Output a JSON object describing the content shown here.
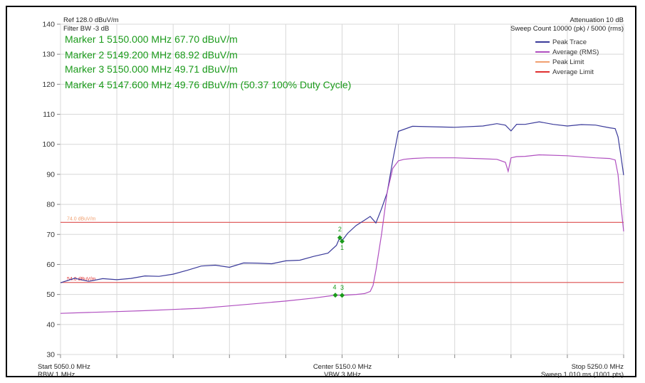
{
  "header": {
    "ref_level": "Ref 128.0 dBuV/m",
    "filter_bw": "Filter BW -3 dB",
    "attenuation": "Attenuation 10 dB",
    "sweep_count": "Sweep Count 10000 (pk) / 5000 (rms)"
  },
  "markers": [
    "Marker 1 5150.000 MHz 67.70 dBuV/m",
    "Marker 2 5149.200 MHz 68.92 dBuV/m",
    "Marker 3 5150.000 MHz 49.71 dBuV/m",
    "Marker 4 5147.600 MHz 49.76 dBuV/m (50.37 100% Duty Cycle)"
  ],
  "footer": {
    "start": "Start 5050.0 MHz",
    "rbw": "RBW 1 MHz",
    "center": "Center 5150.0 MHz",
    "vbw": "VBW 3 MHz",
    "stop": "Stop 5250.0 MHz",
    "sweep": "Sweep 1.010 ms (1001 pts)"
  },
  "colors": {
    "peak_trace": "#3a3a9a",
    "average_trace": "#b04fc0",
    "peak_limit": "#f0a070",
    "average_limit": "#e03030",
    "marker": "#1a9a1a",
    "grid": "#d8d8d8"
  },
  "chart_data": {
    "type": "line",
    "xlim": [
      5050.0,
      5250.0
    ],
    "ylim": [
      30,
      140
    ],
    "y_ticks": [
      30,
      40,
      50,
      60,
      70,
      80,
      90,
      100,
      110,
      120,
      130,
      140
    ],
    "grid": true,
    "legend_position": "top-right",
    "legend": [
      "Peak Trace",
      "Average (RMS)",
      "Peak Limit",
      "Average Limit"
    ],
    "limit_lines": [
      {
        "name": "Peak Limit",
        "value": 74.0,
        "label": "74.0 dBuV/m"
      },
      {
        "name": "Average Limit",
        "value": 54.0,
        "label": "54.0 dBuV/m"
      }
    ],
    "series": [
      {
        "name": "Peak Trace",
        "x": [
          5050,
          5055,
          5060,
          5065,
          5070,
          5075,
          5080,
          5085,
          5090,
          5095,
          5100,
          5105,
          5110,
          5115,
          5120,
          5125,
          5130,
          5135,
          5140,
          5145,
          5148,
          5149.2,
          5150,
          5152,
          5155,
          5158,
          5160,
          5162,
          5164,
          5166,
          5168,
          5170,
          5175,
          5180,
          5190,
          5200,
          5205,
          5208,
          5210,
          5212,
          5215,
          5220,
          5225,
          5230,
          5235,
          5240,
          5245,
          5247,
          5248,
          5249,
          5250
        ],
        "y": [
          54.6,
          54.8,
          55.0,
          55.2,
          55.1,
          55.4,
          56.0,
          56.5,
          57.0,
          58.0,
          58.8,
          59.3,
          59.5,
          59.8,
          60.0,
          60.3,
          60.6,
          61.5,
          62.5,
          64.0,
          66.0,
          68.9,
          67.7,
          70.5,
          73.5,
          75.0,
          76.0,
          74.5,
          79.0,
          84.0,
          94.0,
          104.0,
          106.3,
          106.0,
          106.1,
          106.0,
          106.2,
          105.8,
          104.5,
          106.3,
          106.5,
          106.9,
          106.7,
          106.5,
          106.3,
          106.0,
          105.8,
          105.2,
          103.0,
          97.0,
          90.0
        ]
      },
      {
        "name": "Average (RMS)",
        "x": [
          5050,
          5060,
          5070,
          5080,
          5090,
          5100,
          5110,
          5120,
          5130,
          5140,
          5147.6,
          5150,
          5155,
          5158,
          5160,
          5161,
          5162,
          5164,
          5166,
          5168,
          5170,
          5172,
          5175,
          5180,
          5190,
          5200,
          5205,
          5208,
          5209,
          5210,
          5212,
          5215,
          5220,
          5230,
          5240,
          5245,
          5247,
          5248,
          5249,
          5250
        ],
        "y": [
          43.7,
          44.0,
          44.3,
          44.6,
          45.0,
          45.4,
          46.2,
          47.0,
          47.8,
          48.8,
          49.76,
          49.71,
          50.0,
          50.3,
          51.0,
          53.0,
          58.0,
          70.0,
          84.0,
          92.0,
          94.5,
          95.0,
          95.3,
          95.5,
          95.5,
          95.2,
          95.0,
          94.0,
          91.0,
          95.5,
          95.9,
          96.0,
          96.5,
          96.2,
          95.5,
          95.3,
          94.8,
          90.0,
          80.0,
          71.0
        ]
      }
    ],
    "markers": [
      {
        "id": "1",
        "x": 5150.0,
        "y": 67.7
      },
      {
        "id": "2",
        "x": 5149.2,
        "y": 68.92
      },
      {
        "id": "3",
        "x": 5150.0,
        "y": 49.71
      },
      {
        "id": "4",
        "x": 5147.6,
        "y": 49.76
      }
    ]
  }
}
